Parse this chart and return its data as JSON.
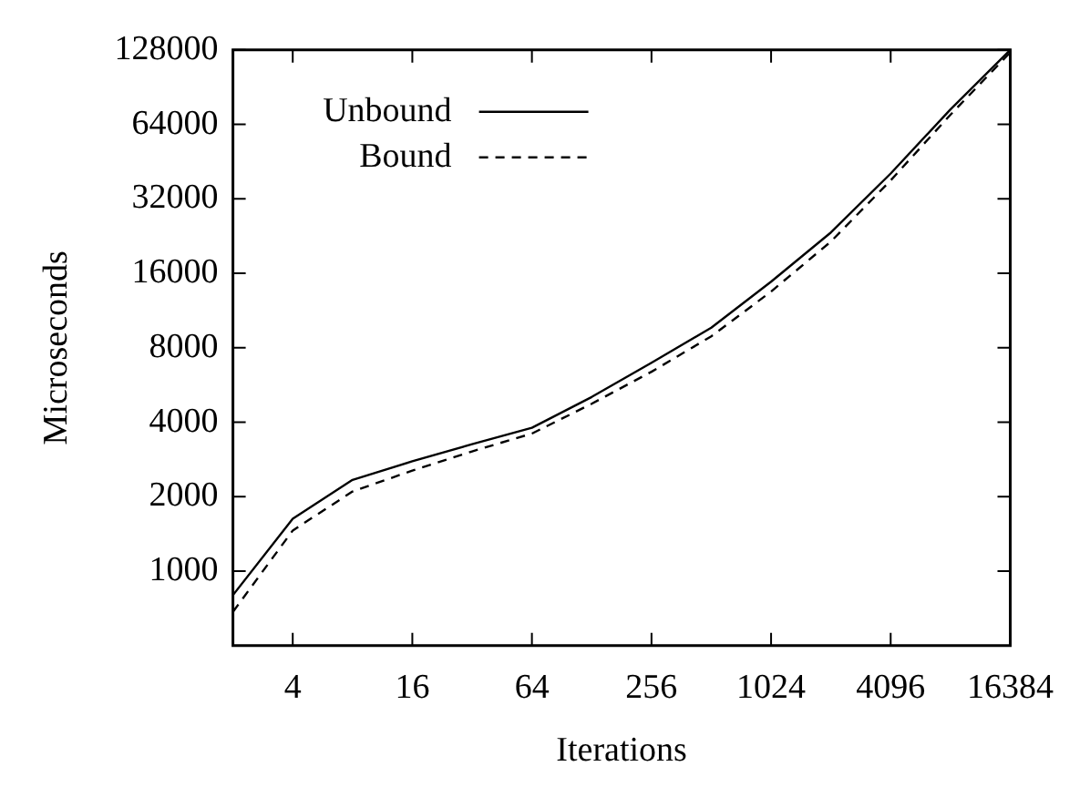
{
  "chart_data": {
    "type": "line",
    "xlabel": "Iterations",
    "ylabel": "Microseconds",
    "log": "xy",
    "legend": "top left",
    "marker": "none",
    "x": [
      2,
      4,
      8,
      16,
      32,
      64,
      128,
      256,
      512,
      1024,
      2048,
      4096,
      8192,
      16384
    ],
    "xlim": [
      2,
      16384
    ],
    "xticks": [
      4,
      16,
      64,
      256,
      1024,
      4096,
      16384
    ],
    "ylim": [
      500,
      128000
    ],
    "yticks": [
      1000,
      2000,
      4000,
      8000,
      16000,
      32000,
      64000,
      128000
    ],
    "series": [
      {
        "name": "Unbound",
        "color": "#000000",
        "line_style": "solid",
        "values": [
          800,
          1630,
          2340,
          2780,
          3260,
          3800,
          5060,
          6960,
          9650,
          14800,
          23400,
          40500,
          73600,
          128000
        ]
      },
      {
        "name": "Bound",
        "color": "#000000",
        "line_style": "dashed",
        "values": [
          685,
          1460,
          2100,
          2550,
          3050,
          3600,
          4750,
          6400,
          8900,
          13500,
          21500,
          38000,
          70000,
          125000
        ]
      }
    ]
  }
}
